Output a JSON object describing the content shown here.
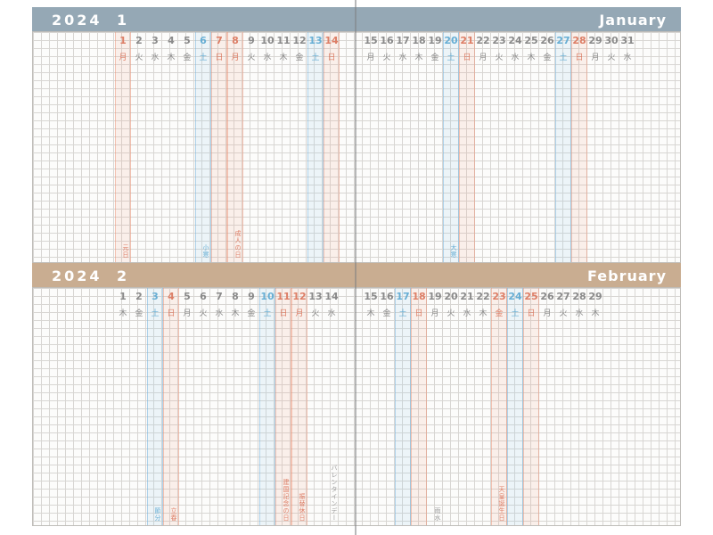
{
  "colors": {
    "january_header": "#95a8b5",
    "february_header": "#c9ad91",
    "weekday_gray": "#8a8a8a",
    "saturday_blue": "#67aed4",
    "sunday_holiday_red": "#dd7e66"
  },
  "months": [
    {
      "id": "january",
      "year": "2024",
      "number": "1",
      "name": "January",
      "header_color": "#95a8b5",
      "days": [
        {
          "date": 1,
          "weekday": "月",
          "type": "holiday"
        },
        {
          "date": 2,
          "weekday": "火",
          "type": "normal"
        },
        {
          "date": 3,
          "weekday": "水",
          "type": "normal"
        },
        {
          "date": 4,
          "weekday": "木",
          "type": "normal"
        },
        {
          "date": 5,
          "weekday": "金",
          "type": "normal"
        },
        {
          "date": 6,
          "weekday": "土",
          "type": "saturday"
        },
        {
          "date": 7,
          "weekday": "日",
          "type": "sunday"
        },
        {
          "date": 8,
          "weekday": "月",
          "type": "holiday"
        },
        {
          "date": 9,
          "weekday": "火",
          "type": "normal"
        },
        {
          "date": 10,
          "weekday": "水",
          "type": "normal"
        },
        {
          "date": 11,
          "weekday": "木",
          "type": "normal"
        },
        {
          "date": 12,
          "weekday": "金",
          "type": "normal"
        },
        {
          "date": 13,
          "weekday": "土",
          "type": "saturday"
        },
        {
          "date": 14,
          "weekday": "日",
          "type": "sunday"
        },
        {
          "date": 15,
          "weekday": "月",
          "type": "normal"
        },
        {
          "date": 16,
          "weekday": "火",
          "type": "normal"
        },
        {
          "date": 17,
          "weekday": "水",
          "type": "normal"
        },
        {
          "date": 18,
          "weekday": "木",
          "type": "normal"
        },
        {
          "date": 19,
          "weekday": "金",
          "type": "normal"
        },
        {
          "date": 20,
          "weekday": "土",
          "type": "saturday"
        },
        {
          "date": 21,
          "weekday": "日",
          "type": "sunday"
        },
        {
          "date": 22,
          "weekday": "月",
          "type": "normal"
        },
        {
          "date": 23,
          "weekday": "火",
          "type": "normal"
        },
        {
          "date": 24,
          "weekday": "水",
          "type": "normal"
        },
        {
          "date": 25,
          "weekday": "木",
          "type": "normal"
        },
        {
          "date": 26,
          "weekday": "金",
          "type": "normal"
        },
        {
          "date": 27,
          "weekday": "土",
          "type": "saturday"
        },
        {
          "date": 28,
          "weekday": "日",
          "type": "sunday"
        },
        {
          "date": 29,
          "weekday": "月",
          "type": "normal"
        },
        {
          "date": 30,
          "weekday": "火",
          "type": "normal"
        },
        {
          "date": 31,
          "weekday": "水",
          "type": "normal"
        }
      ],
      "events": [
        {
          "date": 1,
          "label": "元日",
          "style": "holiday"
        },
        {
          "date": 6,
          "label": "小寒",
          "style": "saturday"
        },
        {
          "date": 8,
          "label": "成人の日",
          "style": "holiday"
        },
        {
          "date": 20,
          "label": "大寒",
          "style": "saturday"
        }
      ]
    },
    {
      "id": "february",
      "year": "2024",
      "number": "2",
      "name": "February",
      "header_color": "#c9ad91",
      "days": [
        {
          "date": 1,
          "weekday": "木",
          "type": "normal"
        },
        {
          "date": 2,
          "weekday": "金",
          "type": "normal"
        },
        {
          "date": 3,
          "weekday": "土",
          "type": "saturday"
        },
        {
          "date": 4,
          "weekday": "日",
          "type": "sunday"
        },
        {
          "date": 5,
          "weekday": "月",
          "type": "normal"
        },
        {
          "date": 6,
          "weekday": "火",
          "type": "normal"
        },
        {
          "date": 7,
          "weekday": "水",
          "type": "normal"
        },
        {
          "date": 8,
          "weekday": "木",
          "type": "normal"
        },
        {
          "date": 9,
          "weekday": "金",
          "type": "normal"
        },
        {
          "date": 10,
          "weekday": "土",
          "type": "saturday"
        },
        {
          "date": 11,
          "weekday": "日",
          "type": "sunday"
        },
        {
          "date": 12,
          "weekday": "月",
          "type": "holiday"
        },
        {
          "date": 13,
          "weekday": "火",
          "type": "normal"
        },
        {
          "date": 14,
          "weekday": "水",
          "type": "normal"
        },
        {
          "date": 15,
          "weekday": "木",
          "type": "normal"
        },
        {
          "date": 16,
          "weekday": "金",
          "type": "normal"
        },
        {
          "date": 17,
          "weekday": "土",
          "type": "saturday"
        },
        {
          "date": 18,
          "weekday": "日",
          "type": "sunday"
        },
        {
          "date": 19,
          "weekday": "月",
          "type": "normal"
        },
        {
          "date": 20,
          "weekday": "火",
          "type": "normal"
        },
        {
          "date": 21,
          "weekday": "水",
          "type": "normal"
        },
        {
          "date": 22,
          "weekday": "木",
          "type": "normal"
        },
        {
          "date": 23,
          "weekday": "金",
          "type": "holiday"
        },
        {
          "date": 24,
          "weekday": "土",
          "type": "saturday"
        },
        {
          "date": 25,
          "weekday": "日",
          "type": "sunday"
        },
        {
          "date": 26,
          "weekday": "月",
          "type": "normal"
        },
        {
          "date": 27,
          "weekday": "火",
          "type": "normal"
        },
        {
          "date": 28,
          "weekday": "水",
          "type": "normal"
        },
        {
          "date": 29,
          "weekday": "木",
          "type": "normal"
        }
      ],
      "events": [
        {
          "date": 3,
          "label": "節分",
          "style": "saturday"
        },
        {
          "date": 4,
          "label": "立春",
          "style": "holiday"
        },
        {
          "date": 11,
          "label": "建国記念の日",
          "style": "holiday"
        },
        {
          "date": 12,
          "label": "振替休日",
          "style": "holiday"
        },
        {
          "date": 14,
          "label": "バレンタインデー",
          "style": "plain"
        },
        {
          "date": 19,
          "label": "雨水",
          "style": "plain"
        },
        {
          "date": 23,
          "label": "天皇誕生日",
          "style": "holiday"
        }
      ]
    }
  ]
}
